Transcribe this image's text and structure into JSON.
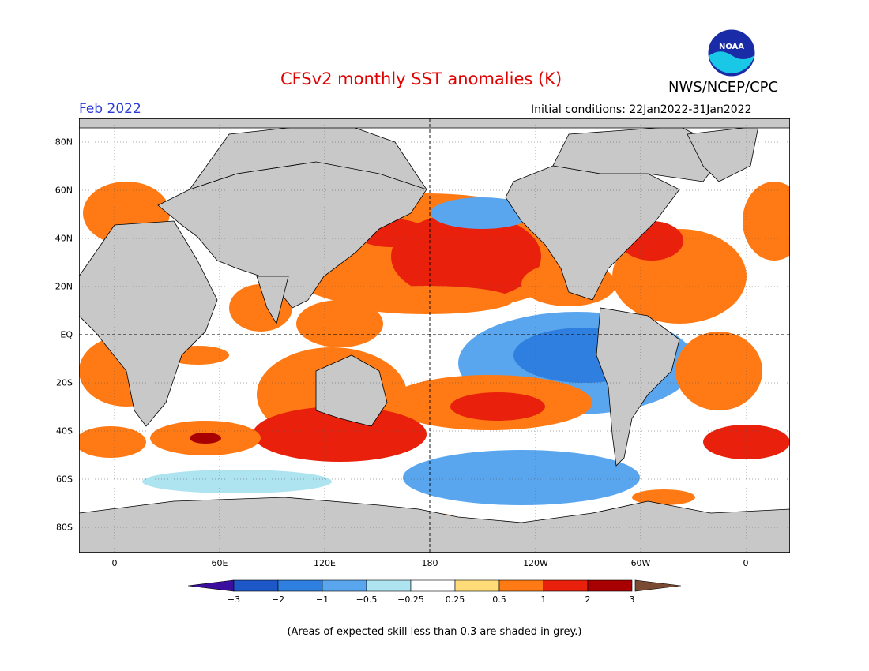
{
  "header": {
    "title": "CFSv2 monthly SST anomalies (K)",
    "valid_month": "Feb 2022",
    "initial_conditions": "Initial conditions: 22Jan2022-31Jan2022",
    "agency": "NWS/NCEP/CPC",
    "logo_text": "NOAA"
  },
  "map": {
    "lat_labels": [
      "80N",
      "60N",
      "40N",
      "20N",
      "EQ",
      "20S",
      "40S",
      "60S",
      "80S"
    ],
    "lon_labels": [
      "0",
      "60E",
      "120E",
      "180",
      "120W",
      "60W",
      "0"
    ],
    "land_color": "#c8c8c8",
    "skill_mask_note": "grey"
  },
  "legend": {
    "tick_labels": [
      "−3",
      "−2",
      "−1",
      "−0.5",
      "−0.25",
      "0.25",
      "0.5",
      "1",
      "2",
      "3"
    ],
    "colors": {
      "under": "#3c0ea0",
      "bins": [
        "#1e58c8",
        "#2f7fe0",
        "#5aa6ee",
        "#aee3f0",
        "#ffffff",
        "#ffdc78",
        "#ff7a14",
        "#e8200c",
        "#a80000"
      ],
      "over": "#7a4a32"
    }
  },
  "footnote": "(Areas of expected skill less than 0.3 are shaded in grey.)"
}
